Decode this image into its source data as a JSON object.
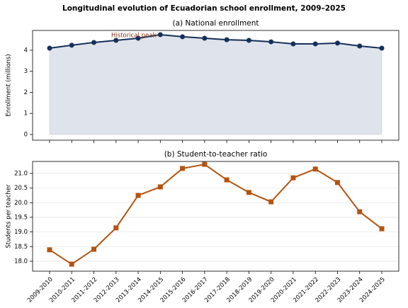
{
  "title": "Longitudinal evolution of Ecuadorian school enrollment, 2009–2025",
  "chart_data": [
    {
      "type": "area",
      "title": "(a) National enrollment",
      "y_label": "Enrollment (millions)",
      "values": [
        4.1,
        4.24,
        4.37,
        4.47,
        4.57,
        4.74,
        4.64,
        4.57,
        4.5,
        4.47,
        4.4,
        4.3,
        4.3,
        4.34,
        4.2,
        4.1
      ],
      "color": "#15305a",
      "fill_color": "#dfe4ec",
      "ylim": [
        -0.27,
        4.94
      ],
      "yticks": [
        0,
        1,
        2,
        3,
        4
      ],
      "grid": false,
      "annotation": "Historical peak",
      "annotation_color": "#8b2e12"
    },
    {
      "type": "line",
      "title": "(b) Student-to-teacher ratio",
      "y_label": "Students per teacher",
      "categories": [
        "2009-2010",
        "2010-2011",
        "2011-2012",
        "2012-2013",
        "2013-2014",
        "2014-2015",
        "2015-2016",
        "2016-2017",
        "2017-2018",
        "2018-2019",
        "2019-2020",
        "2020-2021",
        "2021-2022",
        "2022-2023",
        "2023-2024",
        "2024-2025"
      ],
      "values": [
        18.39,
        17.9,
        18.41,
        19.14,
        20.25,
        20.54,
        21.17,
        21.31,
        20.78,
        20.35,
        20.03,
        20.85,
        21.15,
        20.69,
        19.69,
        19.11
      ],
      "color": "#b5530e",
      "marker": "square",
      "ylim": [
        17.66,
        21.41
      ],
      "yticks": [
        {
          "value": 18,
          "label": "18.0"
        },
        {
          "value": 18.5,
          "label": "18.5"
        },
        {
          "value": 19,
          "label": "19.0"
        },
        {
          "value": 19.5,
          "label": "19.5"
        },
        {
          "value": 20,
          "label": "20.0"
        },
        {
          "value": 20.5,
          "label": "20.5"
        },
        {
          "value": 21,
          "label": "21.0"
        }
      ],
      "grid": true
    }
  ]
}
